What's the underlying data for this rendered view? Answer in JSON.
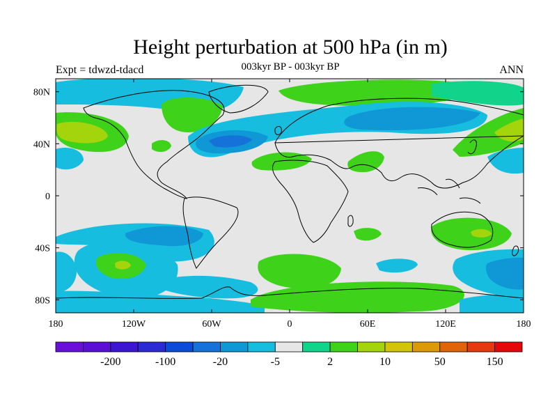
{
  "header": {
    "title": "Height perturbation at 500 hPa (in m)",
    "left_label": "Expt = tdwzd-tdacd",
    "center_label": "003kyr BP - 003kyr BP",
    "right_label": "ANN"
  },
  "axes": {
    "x_ticks": [
      {
        "value": -180,
        "label": "180"
      },
      {
        "value": -120,
        "label": "120W"
      },
      {
        "value": -60,
        "label": "60W"
      },
      {
        "value": 0,
        "label": "0"
      },
      {
        "value": 60,
        "label": "60E"
      },
      {
        "value": 120,
        "label": "120E"
      },
      {
        "value": 180,
        "label": "180"
      }
    ],
    "y_ticks": [
      {
        "value": 80,
        "label": "80N"
      },
      {
        "value": 40,
        "label": "40N"
      },
      {
        "value": 0,
        "label": "0"
      },
      {
        "value": -40,
        "label": "40S"
      },
      {
        "value": -80,
        "label": "80S"
      }
    ],
    "lon_range": [
      -180,
      180
    ],
    "lat_range": [
      -90,
      90
    ]
  },
  "colorbar": {
    "colors": [
      "#6a0fd8",
      "#5b0fd4",
      "#3c16d0",
      "#2c2ad2",
      "#0a4bd8",
      "#1572d8",
      "#0f97d6",
      "#16bdde",
      "#e6e6e6",
      "#12d38a",
      "#3fd21a",
      "#a3d40c",
      "#d2c40a",
      "#dc9a08",
      "#e0640a",
      "#e43a10",
      "#e40808"
    ],
    "labels": [
      {
        "after_index": 1,
        "text": "-200"
      },
      {
        "after_index": 3,
        "text": "-100"
      },
      {
        "after_index": 5,
        "text": "-20"
      },
      {
        "after_index": 7,
        "text": "-5"
      },
      {
        "after_index": 9,
        "text": "2"
      },
      {
        "after_index": 11,
        "text": "10"
      },
      {
        "after_index": 13,
        "text": "50"
      },
      {
        "after_index": 15,
        "text": "150"
      }
    ]
  },
  "map_colors": {
    "neutral": "#e6e6e6",
    "cyan": "#16bdde",
    "blue_light": "#0f97d6",
    "blue": "#1572d8",
    "teal": "#12d38a",
    "green": "#3fd21a",
    "yellow_green": "#a3d40c"
  }
}
